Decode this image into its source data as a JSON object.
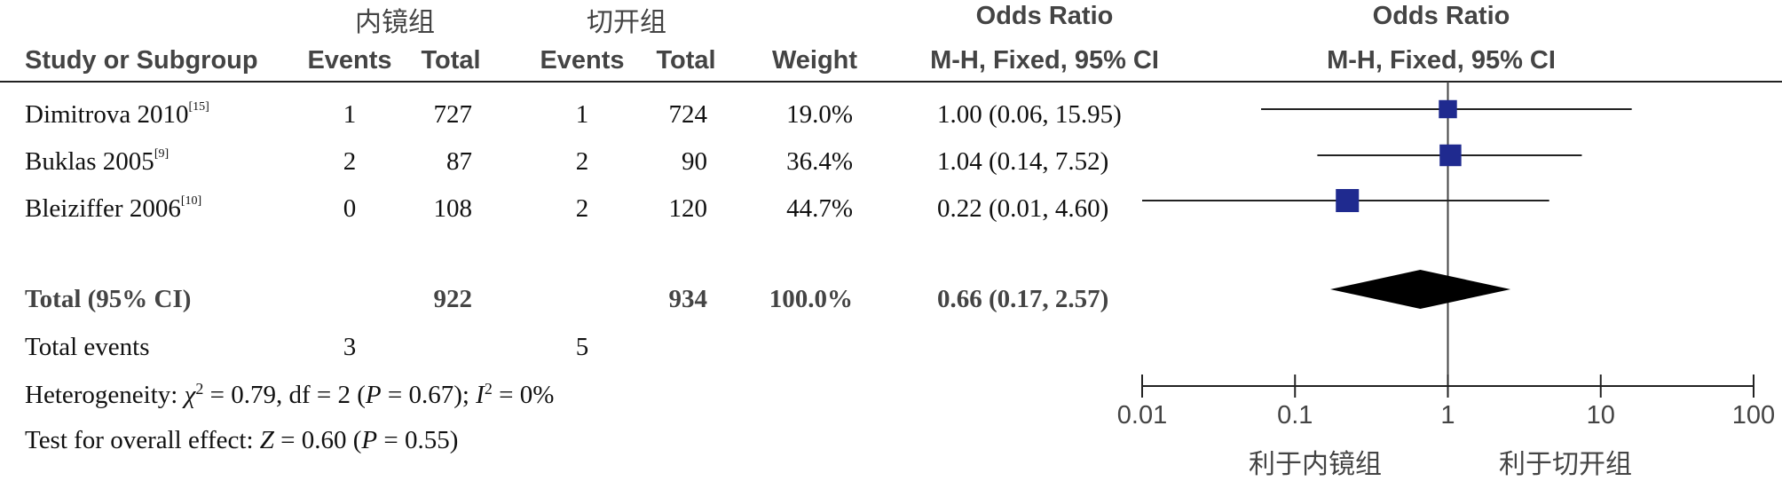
{
  "header": {
    "group1": "内镜组",
    "group2": "切开组",
    "or_title_left": "Odds Ratio",
    "or_title_right": "Odds Ratio",
    "study_col": "Study or Subgroup",
    "events1": "Events",
    "total1": "Total",
    "events2": "Events",
    "total2": "Total",
    "weight": "Weight",
    "method_left": "M-H, Fixed, 95% CI",
    "method_right": "M-H, Fixed, 95% CI"
  },
  "studies": [
    {
      "name": "Dimitrova 2010",
      "ref": "[15]",
      "e1": "1",
      "t1": "727",
      "e2": "1",
      "t2": "724",
      "weight": "19.0%",
      "ci_text": "1.00 (0.06, 15.95)"
    },
    {
      "name": "Buklas 2005",
      "ref": "[9]",
      "e1": "2",
      "t1": "87",
      "e2": "2",
      "t2": "90",
      "weight": "36.4%",
      "ci_text": "1.04 (0.14, 7.52)"
    },
    {
      "name": "Bleiziffer 2006",
      "ref": "[10]",
      "e1": "0",
      "t1": "108",
      "e2": "2",
      "t2": "120",
      "weight": "44.7%",
      "ci_text": "0.22 (0.01, 4.60)"
    }
  ],
  "total": {
    "label": "Total (95% CI)",
    "t1": "922",
    "t2": "934",
    "weight": "100.0%",
    "ci_text": "0.66 (0.17, 2.57)"
  },
  "total_events": {
    "label": "Total events",
    "e1": "3",
    "e2": "5"
  },
  "heterogeneity": {
    "prefix": "Heterogeneity: ",
    "chi": "χ",
    "chi_rest": " = 0.79, df = 2 (",
    "p": "P",
    "p_rest": " = 0.67); ",
    "i": "I",
    "i_rest": " = 0%"
  },
  "overall": {
    "prefix": "Test for overall effect: ",
    "z": "Z",
    "z_rest": " = 0.60 (",
    "p": "P",
    "p_rest": " = 0.55)"
  },
  "axis": {
    "ticks": [
      "0.01",
      "0.1",
      "1",
      "10",
      "100"
    ],
    "favours_left": "利于内镜组",
    "favours_right": "利于切开组"
  },
  "chart_data": {
    "type": "forest",
    "scale": "log",
    "xlim": [
      0.01,
      100
    ],
    "x_ticks": [
      0.01,
      0.1,
      1,
      10,
      100
    ],
    "null_line": 1,
    "marker_color": "#1f2a8f",
    "studies": [
      {
        "name": "Dimitrova 2010",
        "or": 1.0,
        "lo": 0.06,
        "hi": 15.95,
        "weight": 19.0
      },
      {
        "name": "Buklas 2005",
        "or": 1.04,
        "lo": 0.14,
        "hi": 7.52,
        "weight": 36.4
      },
      {
        "name": "Bleiziffer 2006",
        "or": 0.22,
        "lo": 0.01,
        "hi": 4.6,
        "weight": 44.7
      }
    ],
    "pooled": {
      "or": 0.66,
      "lo": 0.17,
      "hi": 2.57
    }
  }
}
